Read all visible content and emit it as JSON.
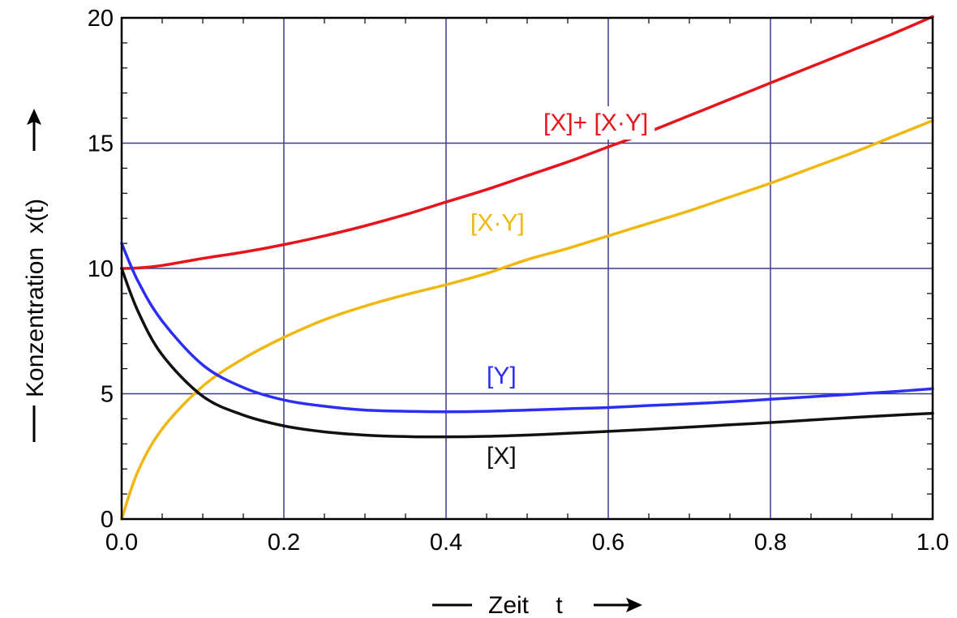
{
  "chart_data": {
    "type": "line",
    "xlabel": "Zeit    t",
    "ylabel": "Konzentration  x(t)",
    "xlim": [
      0.0,
      1.0
    ],
    "ylim": [
      0,
      20
    ],
    "x_ticks": [
      "0.0",
      "0.2",
      "0.4",
      "0.6",
      "0.8",
      "1.0"
    ],
    "y_ticks": [
      "0",
      "5",
      "10",
      "15",
      "20"
    ],
    "grid": true,
    "x": [
      0.0,
      0.02,
      0.05,
      0.1,
      0.15,
      0.2,
      0.25,
      0.3,
      0.35,
      0.4,
      0.45,
      0.5,
      0.55,
      0.6,
      0.65,
      0.7,
      0.75,
      0.8,
      0.85,
      0.9,
      0.95,
      1.0
    ],
    "series": [
      {
        "name": "[X]+ [X·Y]",
        "color": "#e8141c",
        "values": [
          10.0,
          10.02,
          10.12,
          10.4,
          10.65,
          10.95,
          11.3,
          11.7,
          12.15,
          12.65,
          13.15,
          13.7,
          14.25,
          14.85,
          15.45,
          16.1,
          16.75,
          17.4,
          18.05,
          18.7,
          19.35,
          20.05
        ]
      },
      {
        "name": "[X·Y]",
        "color": "#f0b70f",
        "values": [
          0.0,
          1.9,
          3.6,
          5.3,
          6.4,
          7.25,
          7.95,
          8.5,
          8.95,
          9.35,
          9.8,
          10.35,
          10.8,
          11.3,
          11.8,
          12.3,
          12.85,
          13.4,
          14.0,
          14.6,
          15.25,
          15.9
        ]
      },
      {
        "name": "[Y]",
        "color": "#2b2ff5",
        "values": [
          11.0,
          9.5,
          7.9,
          6.15,
          5.25,
          4.75,
          4.5,
          4.35,
          4.3,
          4.28,
          4.3,
          4.35,
          4.4,
          4.45,
          4.53,
          4.6,
          4.68,
          4.78,
          4.88,
          4.98,
          5.08,
          5.2
        ]
      },
      {
        "name": "[X]",
        "color": "#111111",
        "values": [
          10.0,
          8.3,
          6.55,
          4.9,
          4.15,
          3.72,
          3.48,
          3.35,
          3.29,
          3.28,
          3.3,
          3.35,
          3.42,
          3.5,
          3.58,
          3.67,
          3.76,
          3.85,
          3.95,
          4.05,
          4.14,
          4.22
        ]
      }
    ],
    "annotations": [
      {
        "text": "[X]+ [X·Y]",
        "series": 0,
        "x": 0.52,
        "y": 15.5
      },
      {
        "text": "[X·Y]",
        "series": 1,
        "x": 0.43,
        "y": 11.5
      },
      {
        "text": "[Y]",
        "series": 2,
        "x": 0.45,
        "y": 5.4
      },
      {
        "text": "[X]",
        "series": 3,
        "x": 0.45,
        "y": 2.2
      }
    ]
  }
}
